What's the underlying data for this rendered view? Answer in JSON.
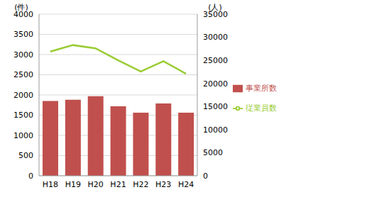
{
  "chart_data": {
    "type": "bar",
    "categories": [
      "H18",
      "H19",
      "H20",
      "H21",
      "H22",
      "H23",
      "H24"
    ],
    "series": [
      {
        "name": "事業所数",
        "type": "bar",
        "color": "#c0504d",
        "values": [
          1850,
          1880,
          1970,
          1720,
          1560,
          1790,
          1560
        ]
      },
      {
        "name": "従業員数",
        "type": "line",
        "axis": "y2",
        "color": "#99cc33",
        "values": [
          26900,
          28300,
          27600,
          25000,
          22600,
          24800,
          22100
        ]
      }
    ],
    "y_label": "(件)",
    "y2_label": "(人)",
    "ylim": [
      0,
      4000
    ],
    "yticks": [
      0,
      500,
      1000,
      1500,
      2000,
      2500,
      3000,
      3500,
      4000
    ],
    "y2lim": [
      0,
      35000
    ],
    "y2ticks": [
      0,
      5000,
      10000,
      15000,
      20000,
      25000,
      30000,
      35000
    ],
    "grid": true,
    "legend": "right"
  }
}
